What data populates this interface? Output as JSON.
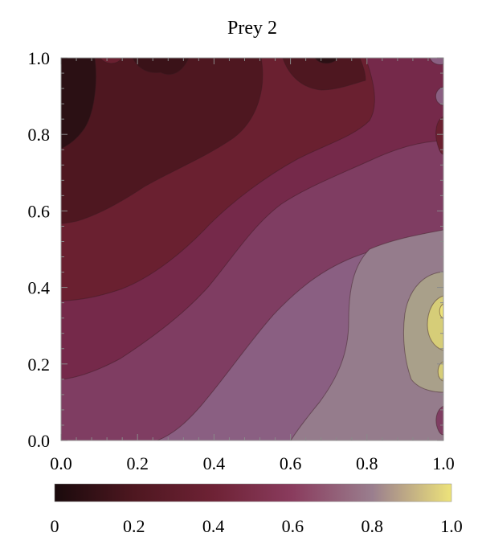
{
  "chart_data": {
    "type": "contour",
    "title": "Prey 2",
    "xlabel": "",
    "ylabel": "",
    "xlim": [
      0.0,
      1.0
    ],
    "ylim": [
      0.0,
      1.0
    ],
    "x_ticks": [
      "0.0",
      "0.2",
      "0.4",
      "0.6",
      "0.8",
      "1.0"
    ],
    "y_ticks": [
      "0.0",
      "0.2",
      "0.4",
      "0.6",
      "0.8",
      "1.0"
    ],
    "colorbar": {
      "range": [
        0,
        1.0
      ],
      "ticks": [
        "0",
        "0.2",
        "0.4",
        "0.6",
        "0.8",
        "1.0"
      ],
      "colors": [
        "#1a0a0c",
        "#4e1720",
        "#6e2235",
        "#8a3c5e",
        "#9a7e8e",
        "#ede37a"
      ]
    },
    "levels": [
      {
        "value": 0.1,
        "color": "#2b1014"
      },
      {
        "value": 0.2,
        "color": "#4e1720"
      },
      {
        "value": 0.3,
        "color": "#6a2030"
      },
      {
        "value": 0.4,
        "color": "#75294a"
      },
      {
        "value": 0.5,
        "color": "#7f3d62"
      },
      {
        "value": 0.6,
        "color": "#8b5a7a"
      },
      {
        "value": 0.7,
        "color": "#957c8c"
      },
      {
        "value": 0.8,
        "color": "#a9a08a"
      },
      {
        "value": 0.9,
        "color": "#d6cd78"
      }
    ],
    "grid": false
  }
}
